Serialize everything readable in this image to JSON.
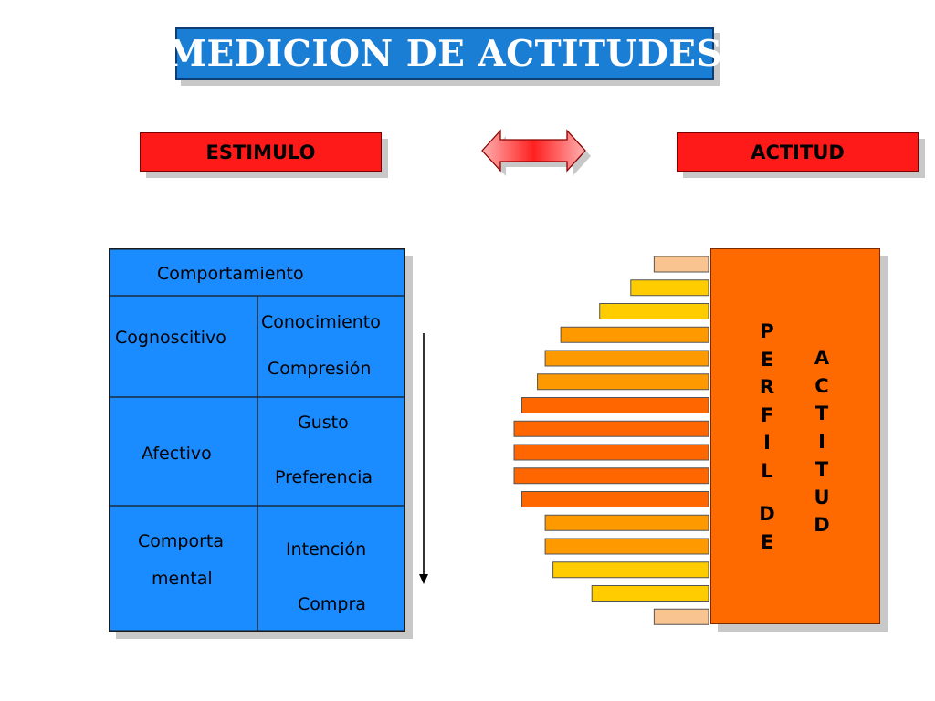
{
  "title": "MEDICION DE ACTITUDES",
  "header": {
    "left_label": "ESTIMULO",
    "right_label": "ACTITUD"
  },
  "table": {
    "top_label": "Comportamiento",
    "rows": [
      {
        "dimension": "Cognoscitivo",
        "items": [
          "Conocimiento",
          "Compresión"
        ]
      },
      {
        "dimension": "Afectivo",
        "items": [
          "Gusto",
          "Preferencia"
        ]
      },
      {
        "dimension_lines": [
          "Comporta",
          "mental"
        ],
        "items": [
          "Intención",
          "Compra"
        ]
      }
    ]
  },
  "profile": {
    "label_perfil_letters": [
      "P",
      "E",
      "R",
      "F",
      "I",
      "L"
    ],
    "label_de_letters": [
      "D",
      "E"
    ],
    "label_actitud_letters": [
      "A",
      "C",
      "T",
      "I",
      "T",
      "U",
      "D"
    ],
    "bars": [
      {
        "level": 0.28,
        "color": "#f9c48f"
      },
      {
        "level": 0.4,
        "color": "#ffcc00"
      },
      {
        "level": 0.56,
        "color": "#ffcc00"
      },
      {
        "level": 0.76,
        "color": "#ff9900"
      },
      {
        "level": 0.84,
        "color": "#ff9900"
      },
      {
        "level": 0.88,
        "color": "#ff9900"
      },
      {
        "level": 0.96,
        "color": "#ff6600"
      },
      {
        "level": 1.0,
        "color": "#ff6600"
      },
      {
        "level": 1.0,
        "color": "#ff6600"
      },
      {
        "level": 1.0,
        "color": "#ff6600"
      },
      {
        "level": 0.96,
        "color": "#ff6600"
      },
      {
        "level": 0.84,
        "color": "#ff9900"
      },
      {
        "level": 0.84,
        "color": "#ff9900"
      },
      {
        "level": 0.8,
        "color": "#ffcc00"
      },
      {
        "level": 0.6,
        "color": "#ffcc00"
      },
      {
        "level": 0.28,
        "color": "#f9c48f"
      }
    ]
  },
  "colors": {
    "title_bg": "#1a7fd4",
    "header_red": "#ff1a1a",
    "table_blue": "#1a8cff",
    "panel_orange": "#ff6a00",
    "arrow_pink": "#ff8080"
  }
}
